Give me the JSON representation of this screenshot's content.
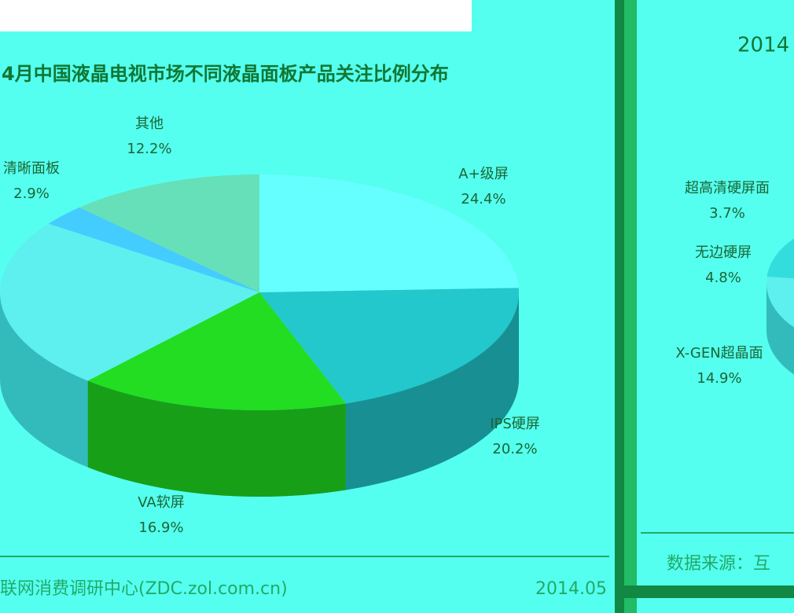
{
  "chart_data": [
    {
      "type": "pie",
      "title": "4月中国液晶电视市场不同液晶面板产品关注比例分布",
      "categories": [
        "A+级屏",
        "IPS硬屏",
        "VA软屏",
        "其他",
        "清晰面板"
      ],
      "values": [
        24.4,
        20.2,
        16.9,
        12.2,
        2.9
      ],
      "value_labels": [
        "24.4%",
        "20.2%",
        "16.9%",
        "12.2%",
        "2.9%"
      ],
      "colors": [
        "#66ffff",
        "#22c8cc",
        "#22dd22",
        "#66e0b8",
        "#44ccff"
      ],
      "source": "联网消费调研中心(ZDC.zol.com.cn)",
      "date": "2014.05"
    },
    {
      "type": "pie",
      "title": "2014",
      "categories": [
        "超高清硬屏面",
        "无边硬屏",
        "X-GEN超晶面"
      ],
      "values": [
        3.7,
        4.8,
        14.9
      ],
      "value_labels": [
        "3.7%",
        "4.8%",
        "14.9%"
      ],
      "colors": [
        "#99ff99",
        "#44ee88",
        "#33dddd"
      ],
      "source": "数据来源：互"
    }
  ]
}
